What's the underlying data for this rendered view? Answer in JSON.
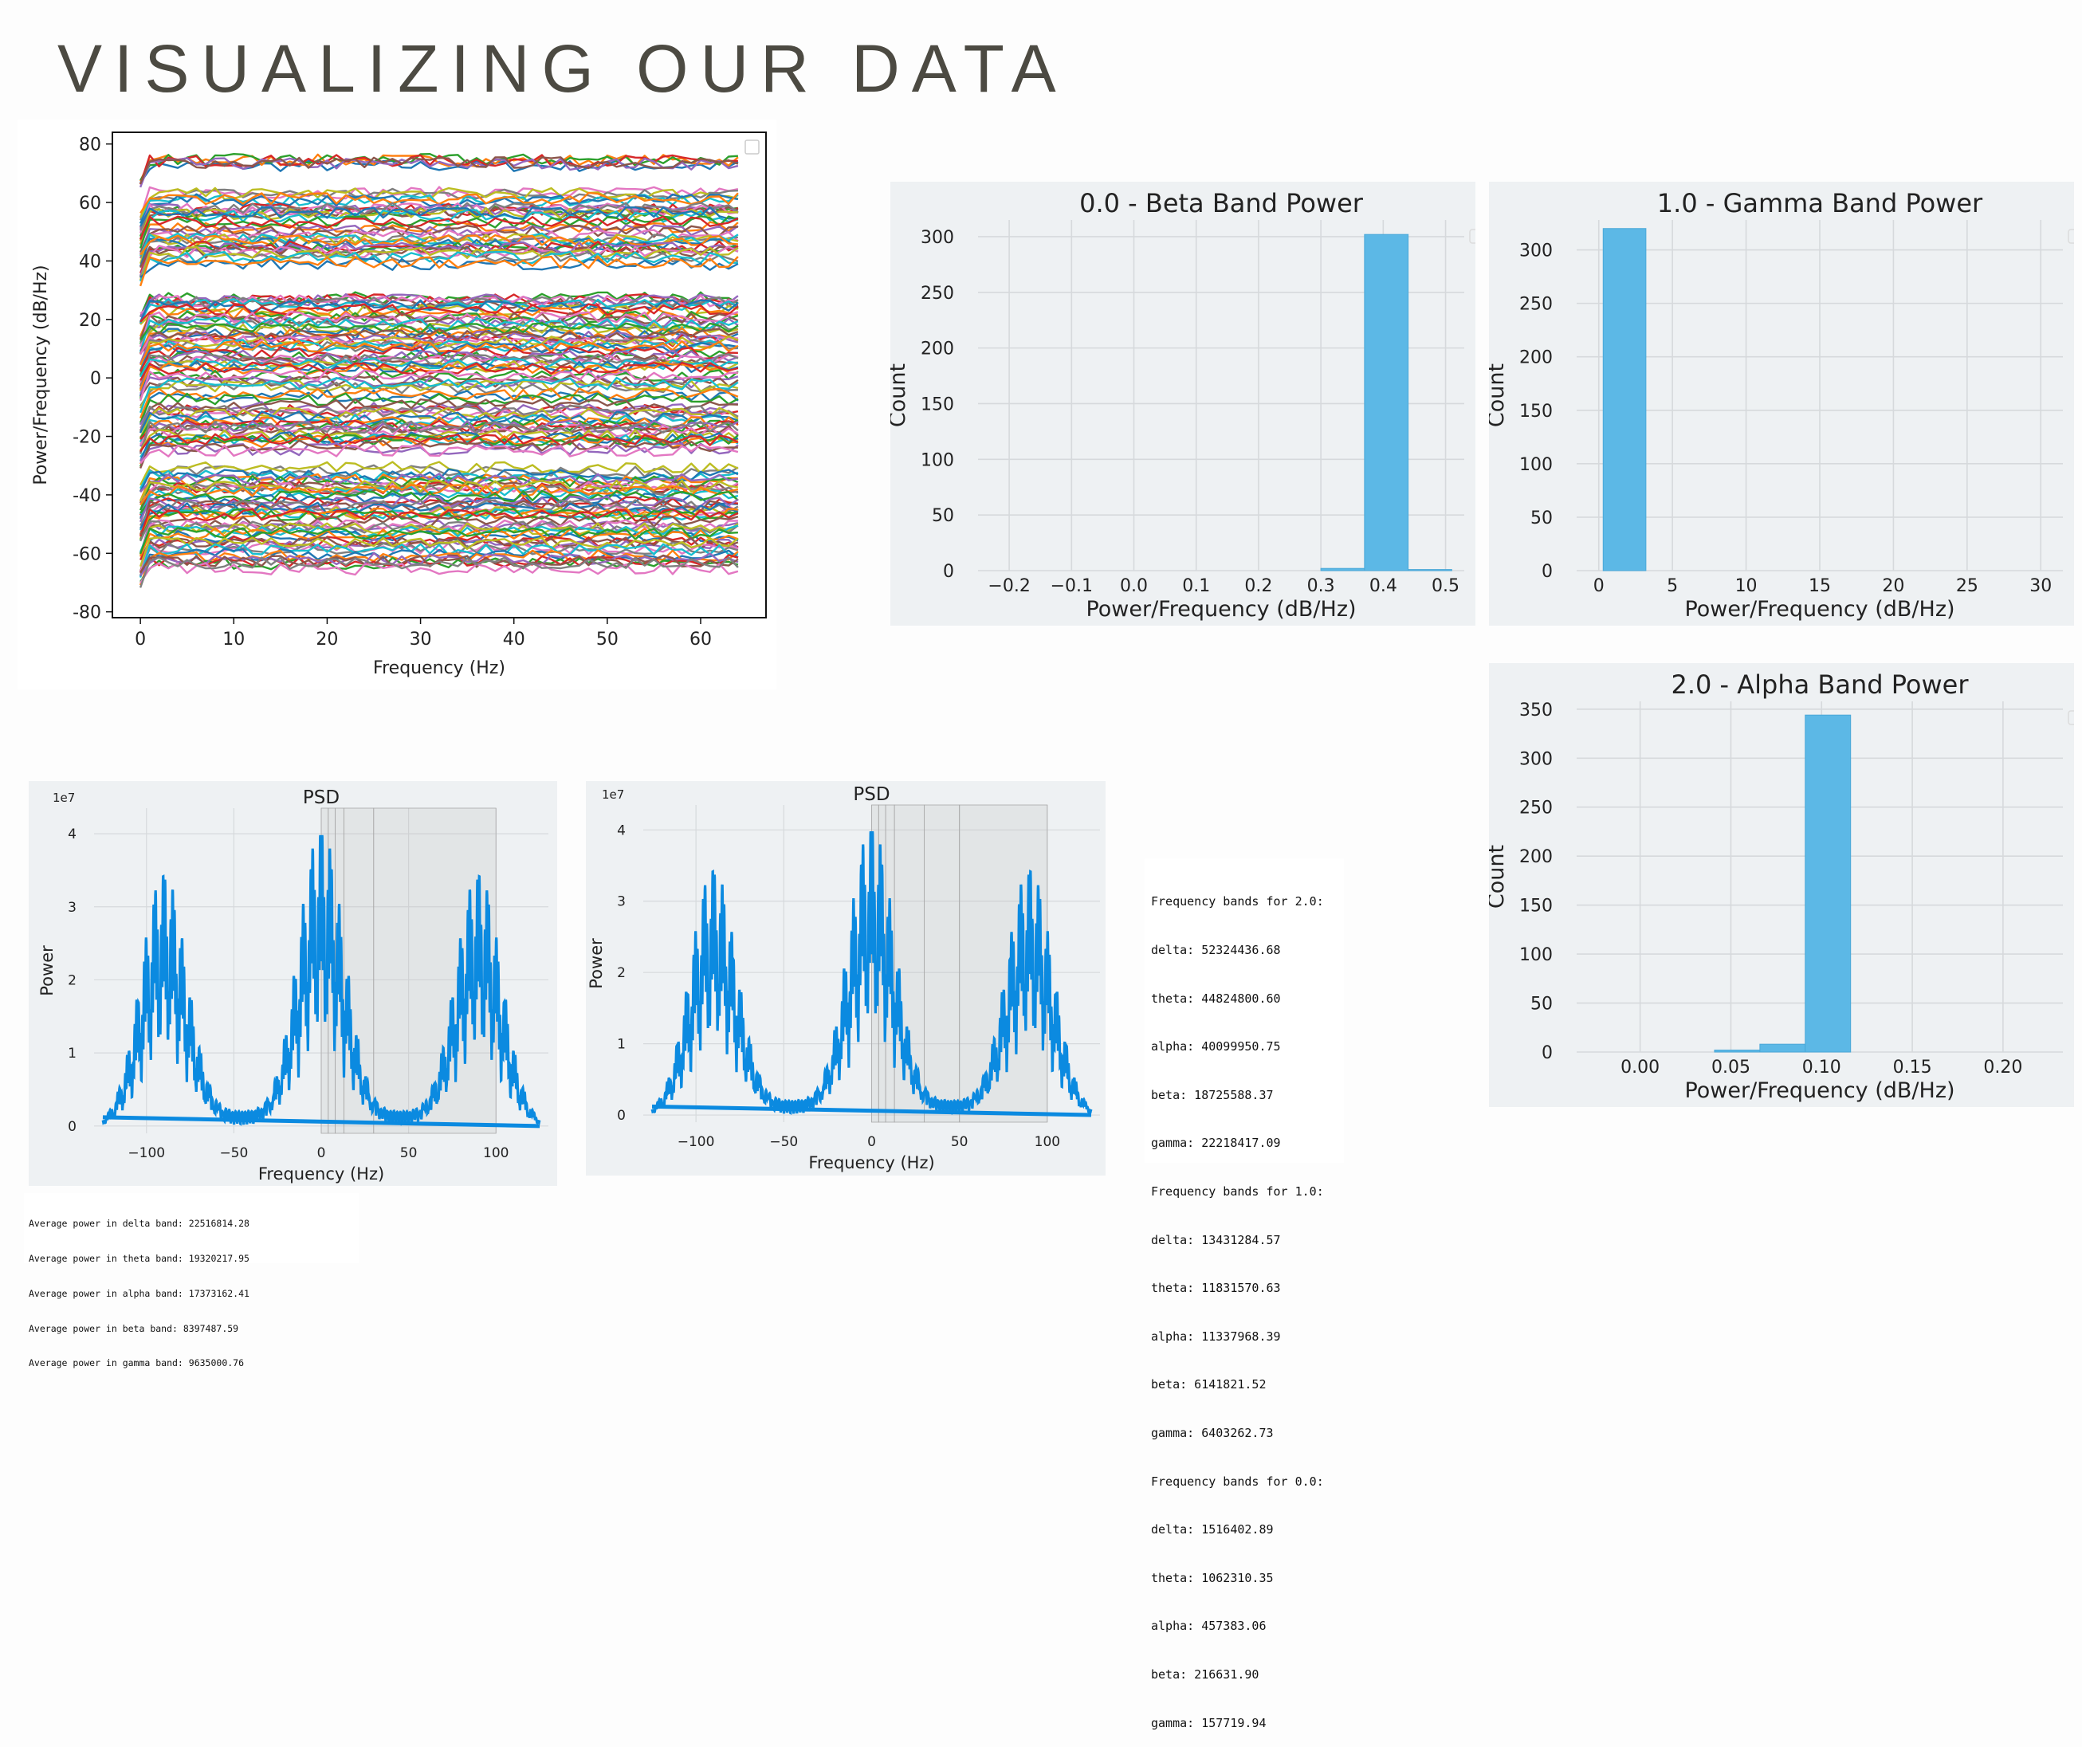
{
  "slide": {
    "title": "VISUALIZING OUR DATA"
  },
  "colors": {
    "hist_bar": "#5cb8e6",
    "psd_line": "#0b8ae0",
    "panel_bg": "#eef1f3",
    "grid": "#d6d9dc",
    "shade": "#bcbcbc"
  },
  "chart_data": [
    {
      "id": "psd-channels",
      "type": "line",
      "title": "",
      "xlabel": "Frequency (Hz)",
      "ylabel": "Power/Frequency (dB/Hz)",
      "xlim": [
        -3,
        67
      ],
      "ylim": [
        -82,
        84
      ],
      "xticks": [
        0,
        10,
        20,
        30,
        40,
        50,
        60
      ],
      "yticks": [
        -80,
        -60,
        -40,
        -20,
        0,
        20,
        40,
        60,
        80
      ],
      "grid": false,
      "legend": "empty box, top-right",
      "series_summary": "many channel PSD traces roughly flat across 0–64 Hz",
      "channel_levels": [
        74,
        73,
        63,
        61,
        58,
        57,
        56,
        52,
        50,
        48,
        46,
        44,
        42,
        40,
        28,
        26,
        24,
        22,
        20,
        18,
        16,
        14,
        12,
        10,
        8,
        6,
        4,
        2,
        0,
        -2,
        -6,
        -10,
        -12,
        -14,
        -16,
        -18,
        -20,
        -22,
        -24,
        -32,
        -34,
        -36,
        -38,
        -40,
        -42,
        -44,
        -46,
        -48,
        -50,
        -52,
        -54,
        -56,
        -58,
        -60,
        -62,
        -64
      ],
      "channel_colors": [
        "#1f77b4",
        "#ff7f0e",
        "#2ca02c",
        "#d62728",
        "#9467bd",
        "#8c564b",
        "#e377c2",
        "#7f7f7f",
        "#bcbd22",
        "#17becf"
      ]
    },
    {
      "id": "hist-beta",
      "type": "bar",
      "title": "0.0 - Beta Band Power",
      "xlabel": "Power/Frequency (dB/Hz)",
      "ylabel": "Count",
      "xlim": [
        -0.25,
        0.53
      ],
      "ylim": [
        0,
        315
      ],
      "xticks": [
        -0.2,
        -0.1,
        0.0,
        0.1,
        0.2,
        0.3,
        0.4,
        0.5
      ],
      "xtick_labels": [
        "−0.2",
        "−0.1",
        "0.0",
        "0.1",
        "0.2",
        "0.3",
        "0.4",
        "0.5"
      ],
      "yticks": [
        0,
        50,
        100,
        150,
        200,
        250,
        300
      ],
      "grid": true,
      "legend": "empty box, top-right",
      "bins": [
        {
          "x0": 0.3,
          "x1": 0.37,
          "count": 2
        },
        {
          "x0": 0.37,
          "x1": 0.44,
          "count": 302
        },
        {
          "x0": 0.44,
          "x1": 0.51,
          "count": 1
        }
      ]
    },
    {
      "id": "hist-gamma",
      "type": "bar",
      "title": "1.0 - Gamma Band Power",
      "xlabel": "Power/Frequency (dB/Hz)",
      "ylabel": "Count",
      "xlim": [
        -1.5,
        31.5
      ],
      "ylim": [
        0,
        328
      ],
      "xticks": [
        0,
        5,
        10,
        15,
        20,
        25,
        30
      ],
      "yticks": [
        0,
        50,
        100,
        150,
        200,
        250,
        300
      ],
      "grid": true,
      "legend": "empty box, top-right",
      "bins": [
        {
          "x0": 0.3,
          "x1": 3.2,
          "count": 320
        }
      ]
    },
    {
      "id": "hist-alpha",
      "type": "bar",
      "title": "2.0 - Alpha Band Power",
      "xlabel": "Power/Frequency (dB/Hz)",
      "ylabel": "Count",
      "xlim": [
        -0.035,
        0.233
      ],
      "ylim": [
        0,
        358
      ],
      "xticks": [
        0.0,
        0.05,
        0.1,
        0.15,
        0.2
      ],
      "xtick_labels": [
        "0.00",
        "0.05",
        "0.10",
        "0.15",
        "0.20"
      ],
      "yticks": [
        0,
        50,
        100,
        150,
        200,
        250,
        300,
        350
      ],
      "grid": true,
      "legend": "empty box, top-right",
      "bins": [
        {
          "x0": 0.041,
          "x1": 0.066,
          "count": 2
        },
        {
          "x0": 0.066,
          "x1": 0.091,
          "count": 8
        },
        {
          "x0": 0.091,
          "x1": 0.116,
          "count": 344
        }
      ]
    },
    {
      "id": "psd-left",
      "type": "line",
      "title": "PSD",
      "xlabel": "Frequency (Hz)",
      "ylabel": "Power",
      "offset_label": "1e7",
      "xlim": [
        -130,
        130
      ],
      "ylim": [
        -0.1,
        4.35
      ],
      "xticks": [
        -100,
        -50,
        0,
        50,
        100
      ],
      "xtick_labels": [
        "−100",
        "−50",
        "0",
        "50",
        "100"
      ],
      "yticks": [
        0,
        1,
        2,
        3,
        4
      ],
      "grid": true,
      "shaded_bands": [
        [
          0,
          4
        ],
        [
          4,
          8
        ],
        [
          8,
          13
        ],
        [
          13,
          30
        ],
        [
          30,
          100
        ]
      ],
      "peaks": [
        {
          "center": -90,
          "height": 3.5
        },
        {
          "center": 0,
          "height": 4.1
        },
        {
          "center": 90,
          "height": 3.5
        }
      ]
    },
    {
      "id": "psd-right",
      "type": "line",
      "title": "PSD",
      "xlabel": "Frequency (Hz)",
      "ylabel": "Power",
      "offset_label": "1e7",
      "xlim": [
        -130,
        130
      ],
      "ylim": [
        -0.1,
        4.35
      ],
      "xticks": [
        -100,
        -50,
        0,
        50,
        100
      ],
      "xtick_labels": [
        "−100",
        "−50",
        "0",
        "50",
        "100"
      ],
      "yticks": [
        0,
        1,
        2,
        3,
        4
      ],
      "grid": true,
      "shaded_bands": [
        [
          0,
          4
        ],
        [
          4,
          8
        ],
        [
          8,
          13
        ],
        [
          13,
          30
        ],
        [
          30,
          50
        ],
        [
          50,
          100
        ]
      ],
      "peaks": [
        {
          "center": -90,
          "height": 3.5
        },
        {
          "center": 0,
          "height": 4.1
        },
        {
          "center": 90,
          "height": 3.5
        }
      ]
    }
  ],
  "freq_output": {
    "lines": [
      "Frequency bands for 2.0:",
      "delta: 52324436.68",
      "theta: 44824800.60",
      "alpha: 40099950.75",
      "beta: 18725588.37",
      "gamma: 22218417.09",
      "Frequency bands for 1.0:",
      "delta: 13431284.57",
      "theta: 11831570.63",
      "alpha: 11337968.39",
      "beta: 6141821.52",
      "gamma: 6403262.73",
      "Frequency bands for 0.0:",
      "delta: 1516402.89",
      "theta: 1062310.35",
      "alpha: 457383.06",
      "beta: 216631.90",
      "gamma: 157719.94"
    ]
  },
  "avg_output": {
    "lines": [
      "Average power in delta band: 22516814.28",
      "Average power in theta band: 19320217.95",
      "Average power in alpha band: 17373162.41",
      "Average power in beta band: 8397487.59",
      "Average power in gamma band: 9635000.76"
    ]
  }
}
